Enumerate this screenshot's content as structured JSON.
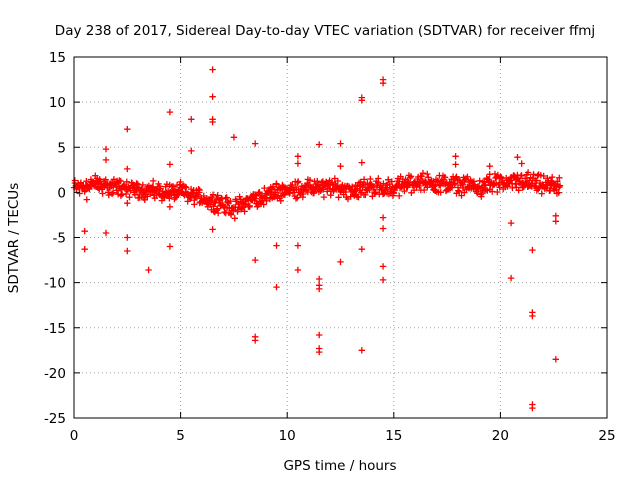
{
  "chart_data": {
    "type": "scatter",
    "title": "Day 238 of 2017, Sidereal Day-to-day VTEC variation (SDTVAR) for receiver ffmj",
    "xlabel": "GPS time / hours",
    "ylabel": "SDTVAR / TECUs",
    "xlim": [
      0,
      25
    ],
    "ylim": [
      -25,
      15
    ],
    "xticks": [
      0,
      5,
      10,
      15,
      20,
      25
    ],
    "yticks": [
      -25,
      -20,
      -15,
      -10,
      -5,
      0,
      5,
      10,
      15
    ],
    "grid": true,
    "marker": "+",
    "color": "#ff0000",
    "band": {
      "x_start": 0,
      "x_end": 22.8,
      "center_profile": [
        [
          0,
          0.6
        ],
        [
          1,
          0.9
        ],
        [
          2,
          0.6
        ],
        [
          3,
          0.3
        ],
        [
          4,
          0.1
        ],
        [
          5,
          0.0
        ],
        [
          6,
          -0.6
        ],
        [
          7,
          -1.4
        ],
        [
          7.5,
          -1.8
        ],
        [
          8,
          -1.2
        ],
        [
          9,
          -0.3
        ],
        [
          10,
          0.3
        ],
        [
          11,
          0.5
        ],
        [
          12,
          0.5
        ],
        [
          13,
          0.3
        ],
        [
          14,
          0.6
        ],
        [
          15,
          0.5
        ],
        [
          16,
          1.2
        ],
        [
          17,
          1.0
        ],
        [
          18,
          0.8
        ],
        [
          19,
          0.6
        ],
        [
          20,
          1.0
        ],
        [
          21,
          1.2
        ],
        [
          22,
          0.8
        ],
        [
          22.8,
          0.7
        ]
      ],
      "spread": 1.2
    },
    "outliers": [
      {
        "x": 0.5,
        "y": -4.3
      },
      {
        "x": 0.5,
        "y": -6.3
      },
      {
        "x": 0.6,
        "y": -0.8
      },
      {
        "x": 1.5,
        "y": 4.8
      },
      {
        "x": 1.5,
        "y": 3.6
      },
      {
        "x": 1.5,
        "y": -4.5
      },
      {
        "x": 2.5,
        "y": 7.0
      },
      {
        "x": 2.5,
        "y": 2.6
      },
      {
        "x": 2.5,
        "y": -1.2
      },
      {
        "x": 2.5,
        "y": -5.0
      },
      {
        "x": 2.5,
        "y": -6.5
      },
      {
        "x": 3.5,
        "y": -8.6
      },
      {
        "x": 4.5,
        "y": 8.9
      },
      {
        "x": 4.5,
        "y": 3.1
      },
      {
        "x": 4.5,
        "y": -1.6
      },
      {
        "x": 4.5,
        "y": -6.0
      },
      {
        "x": 5.5,
        "y": 8.1
      },
      {
        "x": 5.5,
        "y": 4.6
      },
      {
        "x": 6.5,
        "y": 13.6
      },
      {
        "x": 6.5,
        "y": 10.6
      },
      {
        "x": 6.5,
        "y": 8.1
      },
      {
        "x": 6.5,
        "y": 7.8
      },
      {
        "x": 6.5,
        "y": -4.1
      },
      {
        "x": 7.5,
        "y": 6.1
      },
      {
        "x": 8.5,
        "y": 5.4
      },
      {
        "x": 8.5,
        "y": -7.5
      },
      {
        "x": 8.5,
        "y": -16.0
      },
      {
        "x": 8.5,
        "y": -16.4
      },
      {
        "x": 9.5,
        "y": -5.9
      },
      {
        "x": 9.5,
        "y": -10.5
      },
      {
        "x": 10.5,
        "y": 4.0
      },
      {
        "x": 10.5,
        "y": 3.2
      },
      {
        "x": 10.5,
        "y": -5.9
      },
      {
        "x": 10.5,
        "y": -8.6
      },
      {
        "x": 11.5,
        "y": 5.3
      },
      {
        "x": 11.5,
        "y": -9.6
      },
      {
        "x": 11.5,
        "y": -10.3
      },
      {
        "x": 11.5,
        "y": -10.7
      },
      {
        "x": 11.5,
        "y": -15.8
      },
      {
        "x": 11.5,
        "y": -17.3
      },
      {
        "x": 11.5,
        "y": -17.7
      },
      {
        "x": 12.5,
        "y": 5.4
      },
      {
        "x": 12.5,
        "y": 2.9
      },
      {
        "x": 12.5,
        "y": -7.7
      },
      {
        "x": 13.5,
        "y": 10.5
      },
      {
        "x": 13.5,
        "y": 10.2
      },
      {
        "x": 13.5,
        "y": 3.3
      },
      {
        "x": 13.5,
        "y": -6.3
      },
      {
        "x": 13.5,
        "y": -17.5
      },
      {
        "x": 14.5,
        "y": 12.5
      },
      {
        "x": 14.5,
        "y": 12.1
      },
      {
        "x": 14.5,
        "y": -2.8
      },
      {
        "x": 14.5,
        "y": -4.0
      },
      {
        "x": 14.5,
        "y": -8.2
      },
      {
        "x": 14.5,
        "y": -9.7
      },
      {
        "x": 17.9,
        "y": 4.0
      },
      {
        "x": 17.9,
        "y": 3.1
      },
      {
        "x": 19.5,
        "y": 2.9
      },
      {
        "x": 19.5,
        "y": 2.0
      },
      {
        "x": 20.5,
        "y": -3.4
      },
      {
        "x": 20.5,
        "y": -9.5
      },
      {
        "x": 20.8,
        "y": 3.9
      },
      {
        "x": 21.0,
        "y": 3.2
      },
      {
        "x": 21.3,
        "y": 2.2
      },
      {
        "x": 21.5,
        "y": -6.4
      },
      {
        "x": 21.5,
        "y": -13.3
      },
      {
        "x": 21.5,
        "y": -13.7
      },
      {
        "x": 21.5,
        "y": -23.5
      },
      {
        "x": 21.5,
        "y": -23.9
      },
      {
        "x": 22.6,
        "y": -2.6
      },
      {
        "x": 22.6,
        "y": -3.2
      },
      {
        "x": 22.6,
        "y": -18.5
      }
    ]
  }
}
